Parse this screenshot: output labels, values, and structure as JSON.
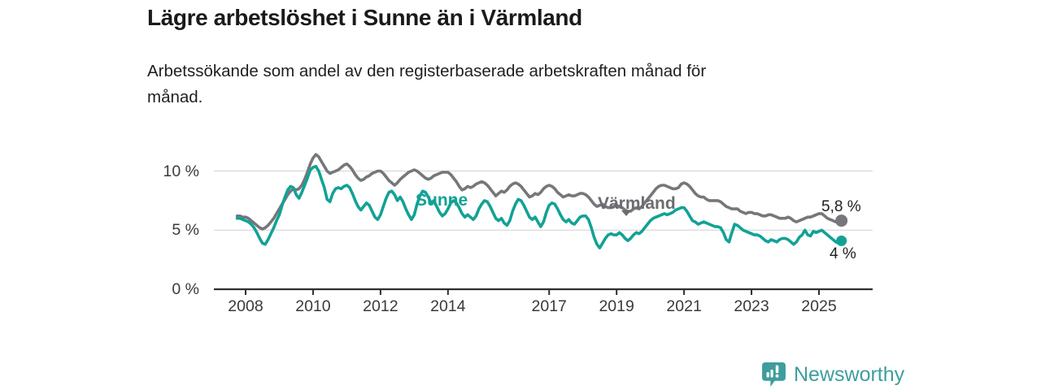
{
  "header": {
    "title": "Lägre arbetslöshet i Sunne än i Värmland",
    "subtitle": "Arbetssökande som andel av den registerbaserade arbetskraften månad för månad."
  },
  "colors": {
    "varmland_line": "#76777b",
    "varmland_label": "#6b6c70",
    "sunne_line": "#12a295",
    "grid": "#d9d9d9",
    "axis": "#2f2f2f",
    "axis_text": "#3a3a3a",
    "brand_teal": "#3f9d9d",
    "title_text": "#1a1a1a"
  },
  "branding": {
    "name": "Newsworthy",
    "icon": "chart-speech-bubble"
  },
  "chart_data": {
    "type": "line",
    "title": "Lägre arbetslöshet i Sunne än i Värmland",
    "subtitle": "Arbetssökande som andel av den registerbaserade arbetskraften månad för månad.",
    "x_unit": "months",
    "x_start_year": 2007.75,
    "x_step_years": 0.0833333,
    "ylim": [
      0,
      12
    ],
    "grid": "horizontal",
    "legend_position": "inline-labels",
    "y_ticks": [
      {
        "value": 0,
        "label": "0 %"
      },
      {
        "value": 5,
        "label": "5 %"
      },
      {
        "value": 10,
        "label": "10 %"
      }
    ],
    "x_ticks": [
      {
        "value": 2008,
        "label": "2008"
      },
      {
        "value": 2010,
        "label": "2010"
      },
      {
        "value": 2012,
        "label": "2012"
      },
      {
        "value": 2014,
        "label": "2014"
      },
      {
        "value": 2017,
        "label": "2017"
      },
      {
        "value": 2019,
        "label": "2019"
      },
      {
        "value": 2021,
        "label": "2021"
      },
      {
        "value": 2023,
        "label": "2023"
      },
      {
        "value": 2025,
        "label": "2025"
      }
    ],
    "series": [
      {
        "name": "Värmland",
        "color": "#76777b",
        "end_label": "5,8 %",
        "end_value": 5.8,
        "values": [
          6.2,
          6.2,
          6.1,
          6.1,
          6.0,
          5.8,
          5.6,
          5.4,
          5.2,
          5.1,
          5.2,
          5.4,
          5.7,
          6.0,
          6.4,
          6.8,
          7.2,
          7.6,
          8.0,
          8.3,
          8.5,
          8.4,
          8.5,
          8.8,
          9.3,
          9.9,
          10.6,
          11.1,
          11.4,
          11.2,
          10.8,
          10.4,
          10.0,
          9.8,
          9.9,
          10.0,
          10.1,
          10.3,
          10.5,
          10.6,
          10.4,
          10.1,
          9.7,
          9.4,
          9.2,
          9.3,
          9.5,
          9.6,
          9.8,
          9.9,
          10.0,
          10.0,
          9.8,
          9.5,
          9.2,
          9.0,
          8.8,
          9.0,
          9.3,
          9.5,
          9.7,
          9.9,
          10.0,
          10.1,
          10.0,
          9.8,
          9.6,
          9.4,
          9.3,
          9.4,
          9.6,
          9.7,
          9.8,
          9.9,
          9.9,
          9.9,
          9.7,
          9.4,
          9.1,
          8.7,
          8.4,
          8.5,
          8.7,
          8.6,
          8.7,
          8.9,
          9.0,
          9.1,
          9.0,
          8.8,
          8.5,
          8.2,
          7.9,
          8.1,
          8.3,
          8.2,
          8.4,
          8.7,
          8.9,
          9.0,
          8.9,
          8.7,
          8.4,
          8.1,
          7.8,
          7.9,
          8.1,
          8.0,
          8.2,
          8.5,
          8.7,
          8.8,
          8.7,
          8.5,
          8.2,
          8.0,
          7.8,
          7.9,
          8.0,
          7.9,
          7.9,
          8.0,
          8.1,
          8.1,
          8.0,
          7.8,
          7.5,
          7.2,
          7.0,
          7.1,
          7.2,
          7.0,
          6.9,
          6.9,
          7.0,
          7.1,
          7.0,
          6.9,
          6.7,
          6.6,
          6.6,
          6.8,
          6.9,
          6.8,
          7.0,
          7.3,
          7.6,
          7.9,
          8.2,
          8.5,
          8.7,
          8.8,
          8.8,
          8.7,
          8.6,
          8.5,
          8.5,
          8.6,
          8.9,
          9.0,
          8.9,
          8.7,
          8.4,
          8.1,
          7.9,
          7.8,
          7.8,
          7.6,
          7.5,
          7.5,
          7.5,
          7.5,
          7.4,
          7.2,
          7.0,
          6.9,
          6.8,
          6.8,
          6.8,
          6.6,
          6.5,
          6.4,
          6.5,
          6.5,
          6.4,
          6.4,
          6.3,
          6.2,
          6.2,
          6.3,
          6.3,
          6.2,
          6.1,
          6.0,
          6.0,
          6.0,
          6.1,
          6.0,
          5.8,
          5.7,
          5.8,
          5.9,
          6.0,
          6.1,
          6.1,
          6.2,
          6.3,
          6.4,
          6.4,
          6.2,
          6.0,
          5.9,
          5.8,
          5.7,
          5.7,
          5.8
        ]
      },
      {
        "name": "Sunne",
        "color": "#12a295",
        "end_label": "4 %",
        "end_value": 4.1,
        "values": [
          6.0,
          6.0,
          5.9,
          5.8,
          5.7,
          5.5,
          5.2,
          4.8,
          4.3,
          3.9,
          3.8,
          4.2,
          4.7,
          5.2,
          5.8,
          6.3,
          7.1,
          7.8,
          8.4,
          8.7,
          8.6,
          8.0,
          7.7,
          8.2,
          8.8,
          9.4,
          10.1,
          10.3,
          10.4,
          10.0,
          9.3,
          8.6,
          7.6,
          7.4,
          8.1,
          8.5,
          8.6,
          8.5,
          8.7,
          8.8,
          8.6,
          8.1,
          7.5,
          7.0,
          6.7,
          7.0,
          7.3,
          7.1,
          6.6,
          6.1,
          5.9,
          6.3,
          7.0,
          7.7,
          8.2,
          8.3,
          8.0,
          7.5,
          7.8,
          7.4,
          6.8,
          6.3,
          5.9,
          6.3,
          7.2,
          7.9,
          8.3,
          8.2,
          7.8,
          7.3,
          7.5,
          7.0,
          6.5,
          6.2,
          6.4,
          6.8,
          7.3,
          7.5,
          7.3,
          6.9,
          6.4,
          6.1,
          6.3,
          6.1,
          5.9,
          6.2,
          6.8,
          7.2,
          7.5,
          7.4,
          7.0,
          6.5,
          6.0,
          5.8,
          6.0,
          5.6,
          5.4,
          5.8,
          6.6,
          7.2,
          7.6,
          7.5,
          7.1,
          6.6,
          6.1,
          5.9,
          6.1,
          5.7,
          5.3,
          5.7,
          6.5,
          7.1,
          7.3,
          7.2,
          6.8,
          6.3,
          5.9,
          5.7,
          5.9,
          5.6,
          5.5,
          5.8,
          6.1,
          6.2,
          6.2,
          5.9,
          5.2,
          4.4,
          3.8,
          3.5,
          3.9,
          4.3,
          4.6,
          4.7,
          4.6,
          4.6,
          4.8,
          4.6,
          4.3,
          4.1,
          4.3,
          4.6,
          4.8,
          4.7,
          4.9,
          5.2,
          5.5,
          5.8,
          6.0,
          6.1,
          6.2,
          6.3,
          6.4,
          6.3,
          6.4,
          6.5,
          6.7,
          6.8,
          6.9,
          6.9,
          6.6,
          6.2,
          5.8,
          5.7,
          5.5,
          5.6,
          5.7,
          5.6,
          5.5,
          5.4,
          5.3,
          5.3,
          5.2,
          4.8,
          4.2,
          4.0,
          4.8,
          5.5,
          5.4,
          5.2,
          5.0,
          4.9,
          4.8,
          4.7,
          4.6,
          4.6,
          4.5,
          4.3,
          4.1,
          4.0,
          4.2,
          4.1,
          4.0,
          4.2,
          4.3,
          4.3,
          4.2,
          4.0,
          3.8,
          4.0,
          4.4,
          4.6,
          5.0,
          4.6,
          4.5,
          4.9,
          4.8,
          4.9,
          5.0,
          4.8,
          4.6,
          4.4,
          4.2,
          4.0,
          3.9,
          4.1
        ]
      }
    ]
  }
}
